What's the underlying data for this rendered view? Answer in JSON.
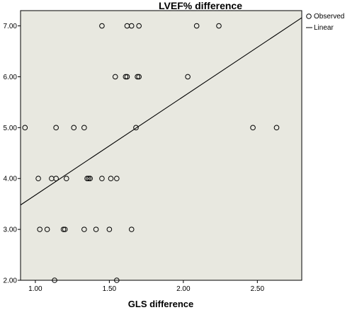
{
  "chart_data": {
    "type": "scatter",
    "title": "LVEF% difference",
    "xlabel": "GLS difference",
    "ylabel": "",
    "xlim": [
      0.9,
      2.8
    ],
    "ylim": [
      2.0,
      7.3
    ],
    "x_ticks": [
      "1.00",
      "1.50",
      "2.00",
      "2.50"
    ],
    "y_ticks": [
      "2.00",
      "3.00",
      "4.00",
      "5.00",
      "6.00",
      "7.00"
    ],
    "plot_background": "#e8e8e0",
    "series": [
      {
        "name": "Observed",
        "kind": "points",
        "points": [
          [
            1.45,
            7.0
          ],
          [
            1.62,
            7.0
          ],
          [
            1.65,
            7.0
          ],
          [
            1.7,
            7.0
          ],
          [
            2.09,
            7.0
          ],
          [
            2.24,
            7.0
          ],
          [
            1.54,
            6.0
          ],
          [
            1.61,
            6.0
          ],
          [
            1.62,
            6.0
          ],
          [
            1.69,
            6.0
          ],
          [
            1.7,
            6.0
          ],
          [
            2.03,
            6.0
          ],
          [
            0.93,
            5.0
          ],
          [
            1.14,
            5.0
          ],
          [
            1.26,
            5.0
          ],
          [
            1.33,
            5.0
          ],
          [
            1.68,
            5.0
          ],
          [
            2.47,
            5.0
          ],
          [
            2.63,
            5.0
          ],
          [
            1.02,
            4.0
          ],
          [
            1.11,
            4.0
          ],
          [
            1.14,
            4.0
          ],
          [
            1.21,
            4.0
          ],
          [
            1.35,
            4.0
          ],
          [
            1.36,
            4.0
          ],
          [
            1.37,
            4.0
          ],
          [
            1.45,
            4.0
          ],
          [
            1.51,
            4.0
          ],
          [
            1.55,
            4.0
          ],
          [
            1.03,
            3.0
          ],
          [
            1.08,
            3.0
          ],
          [
            1.19,
            3.0
          ],
          [
            1.2,
            3.0
          ],
          [
            1.33,
            3.0
          ],
          [
            1.41,
            3.0
          ],
          [
            1.5,
            3.0
          ],
          [
            1.65,
            3.0
          ],
          [
            1.13,
            2.0
          ],
          [
            1.55,
            2.0
          ]
        ]
      },
      {
        "name": "Linear",
        "kind": "line",
        "points": [
          [
            0.9,
            3.48
          ],
          [
            2.8,
            7.16
          ]
        ]
      }
    ],
    "legend": {
      "position": "right",
      "entries": [
        "Observed",
        "Linear"
      ]
    }
  }
}
